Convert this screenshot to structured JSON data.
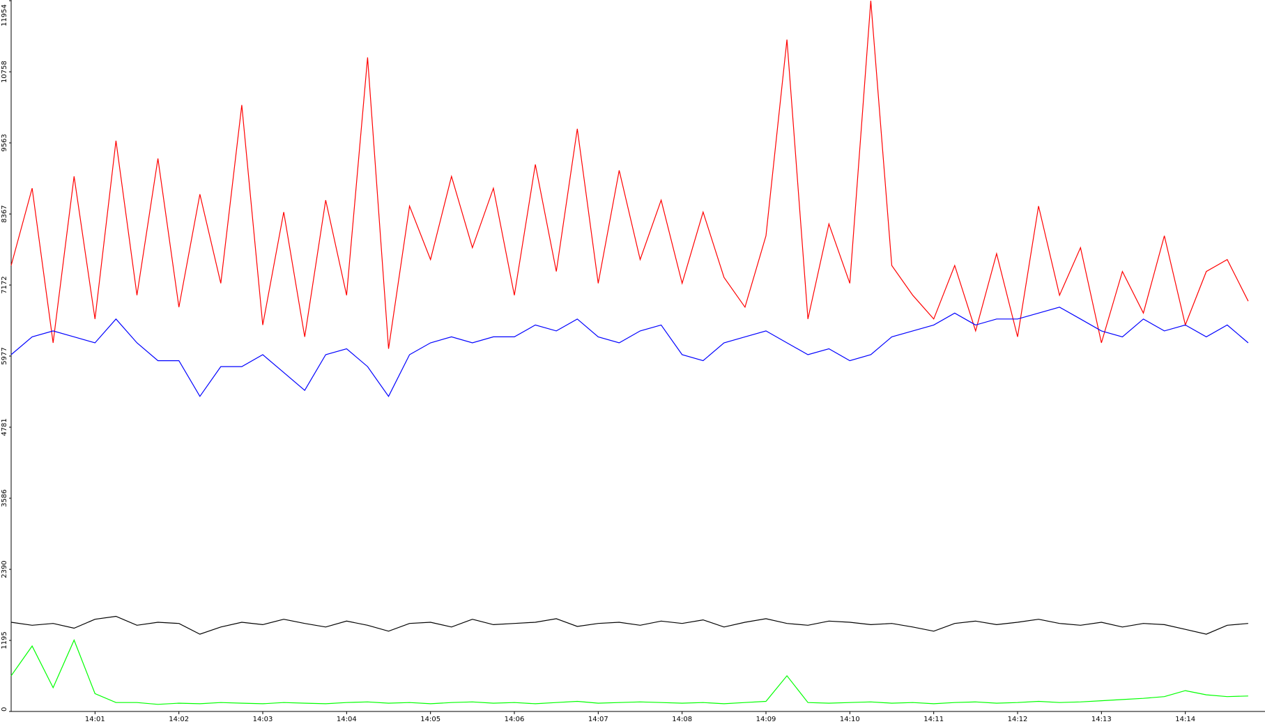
{
  "chart_data": {
    "type": "line",
    "x": [
      0,
      0.25,
      0.5,
      0.75,
      1,
      1.25,
      1.5,
      1.75,
      2,
      2.25,
      2.5,
      2.75,
      3,
      3.25,
      3.5,
      3.75,
      4,
      4.25,
      4.5,
      4.75,
      5,
      5.25,
      5.5,
      5.75,
      6,
      6.25,
      6.5,
      6.75,
      7,
      7.25,
      7.5,
      7.75,
      8,
      8.25,
      8.5,
      8.75,
      9,
      9.25,
      9.5,
      9.75,
      10,
      10.25,
      10.5,
      10.75,
      11,
      11.25,
      11.5,
      11.75,
      12,
      12.25,
      12.5,
      12.75,
      13,
      13.25,
      13.5,
      13.75,
      14,
      14.25,
      14.5,
      14.75
    ],
    "xlim": [
      0,
      14.95
    ],
    "xticks": [
      {
        "value": 1,
        "label": "14:01"
      },
      {
        "value": 2,
        "label": "14:02"
      },
      {
        "value": 3,
        "label": "14:03"
      },
      {
        "value": 4,
        "label": "14:04"
      },
      {
        "value": 5,
        "label": "14:05"
      },
      {
        "value": 6,
        "label": "14:06"
      },
      {
        "value": 7,
        "label": "14:07"
      },
      {
        "value": 8,
        "label": "14:08"
      },
      {
        "value": 9,
        "label": "14:09"
      },
      {
        "value": 10,
        "label": "14:10"
      },
      {
        "value": 11,
        "label": "14:11"
      },
      {
        "value": 12,
        "label": "14:12"
      },
      {
        "value": 13,
        "label": "14:13"
      },
      {
        "value": 14,
        "label": "14:14"
      }
    ],
    "ylim": [
      0,
      11954
    ],
    "yticks": [
      0,
      1195,
      2390,
      3586,
      4781,
      5977,
      7172,
      8367,
      9563,
      10758,
      11954
    ],
    "series": [
      {
        "color": "#ff0000",
        "values": [
          7500,
          8800,
          6200,
          9000,
          6600,
          9600,
          7000,
          9300,
          6800,
          8700,
          7200,
          10200,
          6500,
          8400,
          6300,
          8600,
          7000,
          11000,
          6100,
          8500,
          7600,
          9000,
          7800,
          8800,
          7000,
          9200,
          7400,
          9800,
          7200,
          9100,
          7600,
          8600,
          7200,
          8400,
          7300,
          6800,
          8000,
          11300,
          6600,
          8200,
          7200,
          11954,
          7500,
          7000,
          6600,
          7500,
          6400,
          7700,
          6300,
          8500,
          7000,
          7800,
          6200,
          7400,
          6700,
          8000,
          6500,
          7400,
          7600,
          6900
        ]
      },
      {
        "color": "#0000ff",
        "values": [
          6000,
          6300,
          6400,
          6300,
          6200,
          6600,
          6200,
          5900,
          5900,
          5300,
          5800,
          5800,
          6000,
          5700,
          5400,
          6000,
          6100,
          5800,
          5300,
          6000,
          6200,
          6300,
          6200,
          6300,
          6300,
          6500,
          6400,
          6600,
          6300,
          6200,
          6400,
          6500,
          6000,
          5900,
          6200,
          6300,
          6400,
          6200,
          6000,
          6100,
          5900,
          6000,
          6300,
          6400,
          6500,
          6700,
          6500,
          6600,
          6600,
          6700,
          6800,
          6600,
          6400,
          6300,
          6600,
          6400,
          6500,
          6300,
          6500,
          6200
        ]
      },
      {
        "color": "#000000",
        "values": [
          1500,
          1450,
          1480,
          1400,
          1550,
          1600,
          1450,
          1500,
          1480,
          1300,
          1420,
          1500,
          1460,
          1550,
          1480,
          1420,
          1520,
          1450,
          1350,
          1480,
          1500,
          1420,
          1550,
          1460,
          1480,
          1500,
          1560,
          1430,
          1480,
          1500,
          1450,
          1520,
          1480,
          1540,
          1420,
          1500,
          1560,
          1480,
          1450,
          1520,
          1500,
          1460,
          1480,
          1420,
          1350,
          1480,
          1520,
          1460,
          1500,
          1550,
          1480,
          1450,
          1500,
          1420,
          1480,
          1460,
          1380,
          1300,
          1450,
          1480
        ]
      },
      {
        "color": "#00ff00",
        "values": [
          600,
          1100,
          400,
          1200,
          300,
          150,
          150,
          120,
          140,
          130,
          150,
          140,
          130,
          150,
          140,
          130,
          150,
          160,
          140,
          150,
          130,
          150,
          160,
          140,
          150,
          130,
          150,
          170,
          140,
          150,
          160,
          150,
          140,
          150,
          130,
          150,
          170,
          600,
          150,
          140,
          150,
          160,
          140,
          150,
          130,
          150,
          160,
          140,
          150,
          170,
          150,
          160,
          180,
          200,
          220,
          250,
          350,
          280,
          250,
          260
        ]
      }
    ]
  }
}
